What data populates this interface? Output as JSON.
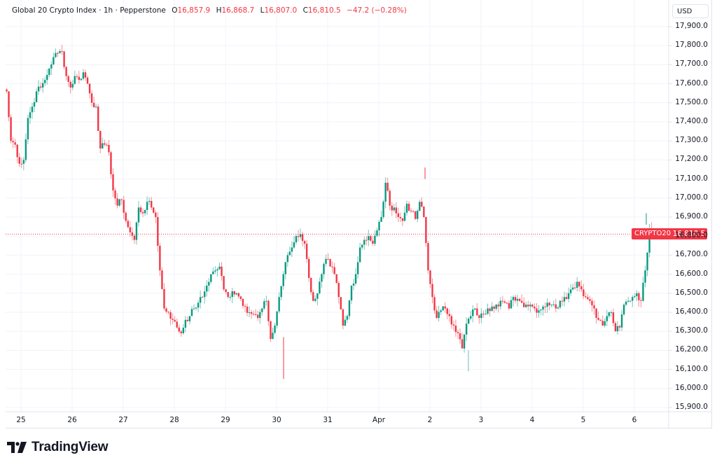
{
  "header": {
    "symbol_title": "Global 20 Crypto Index · 1h · Pepperstone",
    "ohlc": {
      "o_label": "O",
      "o_value": "16,857.9",
      "h_label": "H",
      "h_value": "16,868.7",
      "l_label": "L",
      "l_value": "16,807.0",
      "c_label": "C",
      "c_value": "16,810.5",
      "change": "−47.2 (−0.28%)"
    }
  },
  "price_axis": {
    "currency_button": "USD",
    "ticks": [
      "17,900.0",
      "17,800.0",
      "17,700.0",
      "17,600.0",
      "17,500.0",
      "17,400.0",
      "17,300.0",
      "17,200.0",
      "17,100.0",
      "17,000.0",
      "16,900.0",
      "16,800.0",
      "16,700.0",
      "16,600.0",
      "16,500.0",
      "16,400.0",
      "16,300.0",
      "16,200.0",
      "16,100.0",
      "16,000.0",
      "15,900.0"
    ],
    "current_price_label": "16,810.5",
    "symbol_tag": "CRYPTO20"
  },
  "time_axis": {
    "ticks": [
      "25",
      "26",
      "27",
      "28",
      "29",
      "30",
      "31",
      "Apr",
      "2",
      "3",
      "4",
      "5",
      "6"
    ]
  },
  "branding": {
    "logo_text": "TradingView"
  },
  "colors": {
    "up": "#089981",
    "down": "#f23645",
    "grid": "#f0f3fa",
    "text": "#131722"
  },
  "chart_data": {
    "type": "candlestick",
    "title": "Global 20 Crypto Index · 1h · Pepperstone",
    "interval": "1h",
    "xlabel": "",
    "ylabel": "USD",
    "ylim": [
      15850,
      17950
    ],
    "grid": true,
    "x_ticks": [
      "25",
      "26",
      "27",
      "28",
      "29",
      "30",
      "31",
      "Apr",
      "2",
      "3",
      "4",
      "5",
      "6"
    ],
    "y_ticks": [
      15900,
      16000,
      16100,
      16200,
      16300,
      16400,
      16500,
      16600,
      16700,
      16800,
      16900,
      17000,
      17100,
      17200,
      17300,
      17400,
      17500,
      17600,
      17700,
      17800,
      17900
    ],
    "last": {
      "open": 16857.9,
      "high": 16868.7,
      "low": 16807.0,
      "close": 16810.5,
      "change": -47.2,
      "change_pct": -0.28
    },
    "approx_close_path": [
      [
        0,
        17550
      ],
      [
        2,
        17300
      ],
      [
        4,
        17280
      ],
      [
        6,
        17180
      ],
      [
        8,
        17200
      ],
      [
        10,
        17420
      ],
      [
        12,
        17480
      ],
      [
        14,
        17560
      ],
      [
        16,
        17580
      ],
      [
        18,
        17620
      ],
      [
        20,
        17680
      ],
      [
        22,
        17740
      ],
      [
        24,
        17760
      ],
      [
        26,
        17770
      ],
      [
        28,
        17640
      ],
      [
        30,
        17580
      ],
      [
        32,
        17640
      ],
      [
        34,
        17620
      ],
      [
        36,
        17660
      ],
      [
        38,
        17600
      ],
      [
        40,
        17500
      ],
      [
        42,
        17480
      ],
      [
        44,
        17260
      ],
      [
        46,
        17280
      ],
      [
        48,
        17240
      ],
      [
        50,
        17040
      ],
      [
        52,
        16960
      ],
      [
        54,
        16990
      ],
      [
        56,
        16880
      ],
      [
        58,
        16820
      ],
      [
        60,
        16780
      ],
      [
        62,
        16950
      ],
      [
        64,
        16920
      ],
      [
        66,
        16980
      ],
      [
        68,
        16950
      ],
      [
        70,
        16900
      ],
      [
        72,
        16620
      ],
      [
        74,
        16420
      ],
      [
        76,
        16400
      ],
      [
        78,
        16360
      ],
      [
        80,
        16320
      ],
      [
        82,
        16290
      ],
      [
        84,
        16360
      ],
      [
        86,
        16380
      ],
      [
        88,
        16420
      ],
      [
        90,
        16450
      ],
      [
        92,
        16480
      ],
      [
        94,
        16540
      ],
      [
        96,
        16600
      ],
      [
        98,
        16620
      ],
      [
        100,
        16640
      ],
      [
        102,
        16520
      ],
      [
        104,
        16480
      ],
      [
        106,
        16510
      ],
      [
        108,
        16500
      ],
      [
        110,
        16470
      ],
      [
        112,
        16430
      ],
      [
        114,
        16400
      ],
      [
        116,
        16390
      ],
      [
        118,
        16370
      ],
      [
        120,
        16420
      ],
      [
        122,
        16460
      ],
      [
        124,
        16260
      ],
      [
        126,
        16330
      ],
      [
        128,
        16480
      ],
      [
        130,
        16600
      ],
      [
        132,
        16700
      ],
      [
        134,
        16740
      ],
      [
        136,
        16800
      ],
      [
        138,
        16810
      ],
      [
        140,
        16760
      ],
      [
        142,
        16580
      ],
      [
        144,
        16460
      ],
      [
        146,
        16500
      ],
      [
        148,
        16600
      ],
      [
        150,
        16680
      ],
      [
        152,
        16640
      ],
      [
        154,
        16600
      ],
      [
        156,
        16480
      ],
      [
        158,
        16330
      ],
      [
        160,
        16380
      ],
      [
        162,
        16540
      ],
      [
        164,
        16600
      ],
      [
        166,
        16740
      ],
      [
        168,
        16780
      ],
      [
        170,
        16800
      ],
      [
        172,
        16760
      ],
      [
        174,
        16830
      ],
      [
        176,
        16900
      ],
      [
        178,
        17080
      ],
      [
        180,
        16960
      ],
      [
        182,
        16950
      ],
      [
        184,
        16900
      ],
      [
        186,
        16880
      ],
      [
        188,
        16970
      ],
      [
        190,
        16930
      ],
      [
        192,
        16890
      ],
      [
        194,
        16980
      ],
      [
        196,
        16900
      ],
      [
        198,
        16620
      ],
      [
        200,
        16480
      ],
      [
        202,
        16370
      ],
      [
        204,
        16410
      ],
      [
        206,
        16420
      ],
      [
        208,
        16380
      ],
      [
        210,
        16330
      ],
      [
        212,
        16290
      ],
      [
        214,
        16210
      ],
      [
        216,
        16340
      ],
      [
        218,
        16380
      ],
      [
        220,
        16420
      ],
      [
        222,
        16370
      ],
      [
        224,
        16390
      ],
      [
        226,
        16420
      ],
      [
        228,
        16430
      ],
      [
        230,
        16440
      ],
      [
        232,
        16460
      ],
      [
        234,
        16450
      ],
      [
        236,
        16420
      ],
      [
        238,
        16480
      ],
      [
        240,
        16470
      ],
      [
        242,
        16450
      ],
      [
        244,
        16440
      ],
      [
        246,
        16440
      ],
      [
        248,
        16420
      ],
      [
        250,
        16410
      ],
      [
        252,
        16430
      ],
      [
        254,
        16450
      ],
      [
        256,
        16440
      ],
      [
        258,
        16420
      ],
      [
        260,
        16460
      ],
      [
        262,
        16480
      ],
      [
        264,
        16500
      ],
      [
        266,
        16530
      ],
      [
        268,
        16560
      ],
      [
        270,
        16520
      ],
      [
        272,
        16480
      ],
      [
        274,
        16460
      ],
      [
        276,
        16420
      ],
      [
        278,
        16360
      ],
      [
        280,
        16330
      ],
      [
        282,
        16380
      ],
      [
        284,
        16400
      ],
      [
        286,
        16300
      ],
      [
        288,
        16320
      ],
      [
        290,
        16440
      ],
      [
        292,
        16460
      ],
      [
        294,
        16480
      ],
      [
        296,
        16500
      ],
      [
        298,
        16460
      ],
      [
        300,
        16620
      ],
      [
        302,
        16840
      ],
      [
        304,
        16810.5
      ]
    ]
  }
}
